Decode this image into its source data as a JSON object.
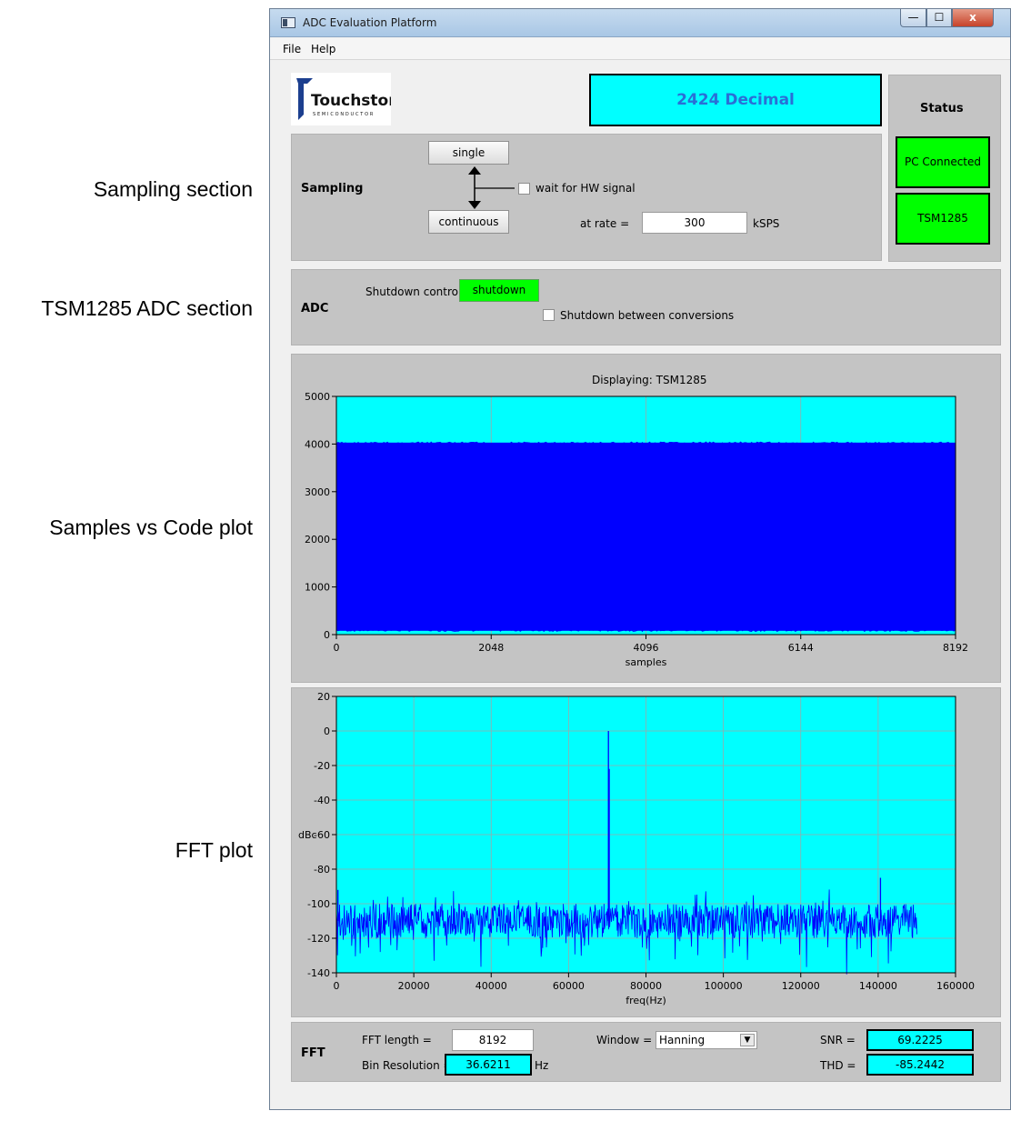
{
  "callouts": {
    "sampling": "Sampling section",
    "adc": "TSM1285 ADC section",
    "samples_plot": "Samples vs Code plot",
    "fft_plot": "FFT plot"
  },
  "window": {
    "title": "ADC Evaluation Platform",
    "menu": [
      "File",
      "Help"
    ],
    "min_glyph": "—",
    "max_glyph": "☐",
    "close_glyph": "x"
  },
  "logo": {
    "name": "Touchstone",
    "sub": "SEMICONDUCTOR"
  },
  "display_value": "2424 Decimal",
  "status": {
    "title": "Status",
    "pc": "PC Connected",
    "device": "TSM1285",
    "color": "#00ff00"
  },
  "sampling": {
    "title": "Sampling",
    "single_label": "single",
    "continuous_label": "continuous",
    "wait_label": "wait for HW signal",
    "wait_checked": false,
    "rate_label": "at rate =",
    "rate_value": "300",
    "rate_unit": "kSPS"
  },
  "adc": {
    "title": "ADC",
    "shutdown_control_label": "Shutdown control",
    "shutdown_button": "shutdown",
    "between_label": "Shutdown between conversions",
    "between_checked": false
  },
  "fft_controls": {
    "title": "FFT",
    "length_label": "FFT length =",
    "length_value": "8192",
    "bin_label": "Bin Resolution =",
    "bin_value": "36.6211",
    "bin_unit": "Hz",
    "window_label": "Window =",
    "window_value": "Hanning",
    "snr_label": "SNR =",
    "snr_value": "69.2225",
    "thd_label": "THD =",
    "thd_value": "-85.2442"
  },
  "chart_data": [
    {
      "type": "area",
      "title": "Displaying: TSM1285",
      "xlabel": "samples",
      "ylabel": "",
      "xlim": [
        0,
        8192
      ],
      "ylim": [
        0,
        5000
      ],
      "xticks": [
        0,
        2048,
        4096,
        6144,
        8192
      ],
      "yticks": [
        0,
        1000,
        2000,
        3000,
        4000,
        5000
      ],
      "grid": true,
      "background": "#00ffff",
      "color": "#0000ff",
      "series": [
        {
          "min": 80,
          "max": 4030
        }
      ]
    },
    {
      "type": "line",
      "title": "",
      "xlabel": "freq(Hz)",
      "ylabel": "dBc",
      "xlim": [
        0,
        160000
      ],
      "ylim": [
        -140,
        20
      ],
      "xticks": [
        0,
        20000,
        40000,
        60000,
        80000,
        100000,
        120000,
        140000,
        160000
      ],
      "yticks": [
        -140,
        -120,
        -100,
        -80,
        -60,
        -40,
        -20,
        0,
        20
      ],
      "grid": true,
      "background": "#00ffff",
      "color": "#0000ff",
      "series": [
        {
          "noise_floor": -110,
          "noise_spread": 10,
          "x_end": 150000,
          "peaks": [
            {
              "x": 70300,
              "y": 0
            },
            {
              "x": 70500,
              "y": -22
            },
            {
              "x": 140600,
              "y": -85
            },
            {
              "x": 400,
              "y": -92
            }
          ]
        }
      ]
    }
  ]
}
